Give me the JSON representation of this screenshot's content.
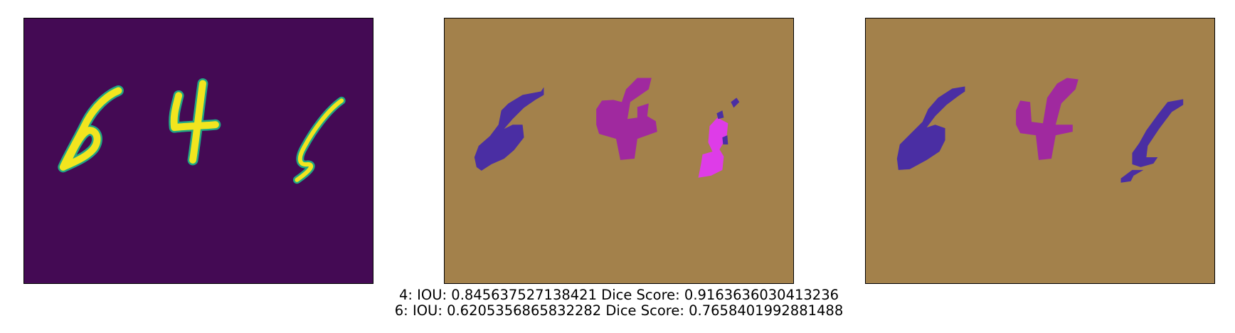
{
  "figure": {
    "panels": [
      {
        "id": "input-image",
        "description_key": "input",
        "background": "#440a54",
        "digit_color": "#f2e51f",
        "digit_edge_color": "#21a685"
      },
      {
        "id": "predicted-mask",
        "description_key": "prediction",
        "background": "#a3814b",
        "digit_colors": {
          "6": "#4a2ea3",
          "4": "#a0299f",
          "1": "#de3ce8"
        }
      },
      {
        "id": "ground-truth-mask",
        "description_key": "ground-truth",
        "background": "#a3814b",
        "digit_colors": {
          "6": "#4a2ea3",
          "4": "#a0299f",
          "1": "#4a2ea3"
        }
      }
    ],
    "metrics": [
      {
        "line": "4: IOU: 0.845637527138421 Dice Score: 0.9163636030413236"
      },
      {
        "line": "6: IOU: 0.6205356865832282 Dice Score: 0.7658401992881488"
      }
    ]
  }
}
